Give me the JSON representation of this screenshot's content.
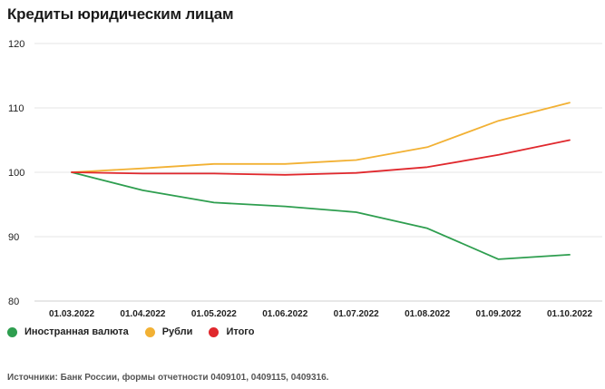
{
  "chart_data": {
    "type": "line",
    "title": "Кредиты юридическим лицам",
    "categories": [
      "01.03.2022",
      "01.04.2022",
      "01.05.2022",
      "01.06.2022",
      "01.07.2022",
      "01.08.2022",
      "01.09.2022",
      "01.10.2022"
    ],
    "ylim": [
      80,
      120
    ],
    "yticks": [
      80,
      90,
      100,
      110,
      120
    ],
    "grid": "horizontal",
    "legend_position": "bottom-left",
    "series": [
      {
        "name": "Иностранная валюта",
        "color": "#2e9e4f",
        "values": [
          100,
          97.2,
          95.3,
          94.7,
          93.8,
          91.3,
          86.5,
          87.2
        ]
      },
      {
        "name": "Рубли",
        "color": "#f2b134",
        "values": [
          100,
          100.6,
          101.3,
          101.3,
          101.9,
          103.9,
          108.0,
          110.8
        ]
      },
      {
        "name": "Итого",
        "color": "#e0282d",
        "values": [
          100,
          99.8,
          99.8,
          99.6,
          99.9,
          100.8,
          102.7,
          105.0
        ]
      }
    ],
    "source": "Источники: Банк России, формы отчетности 0409101, 0409115, 0409316."
  }
}
